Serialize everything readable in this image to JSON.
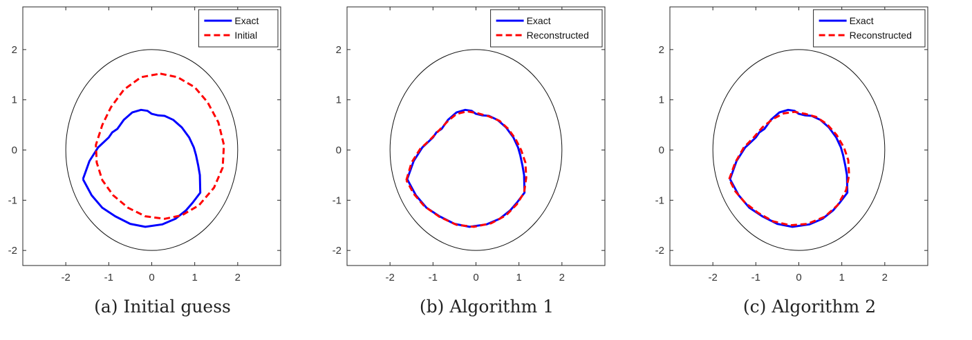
{
  "chart_data": [
    {
      "type": "line",
      "caption": "(a) Initial guess",
      "xlim": [
        -3,
        3
      ],
      "ylim": [
        -2.3,
        2.85
      ],
      "xticks": [
        -2,
        -1,
        0,
        1,
        2
      ],
      "yticks": [
        -2,
        -1,
        0,
        1,
        2
      ],
      "legend": "top-right",
      "series": [
        {
          "name": "Exact",
          "color": "#0000ff",
          "style": "solid",
          "points": [
            [
              -1.6,
              -0.58
            ],
            [
              -1.45,
              -0.22
            ],
            [
              -1.25,
              0.05
            ],
            [
              -1.0,
              0.25
            ],
            [
              -0.92,
              0.35
            ],
            [
              -0.8,
              0.42
            ],
            [
              -0.65,
              0.6
            ],
            [
              -0.45,
              0.75
            ],
            [
              -0.25,
              0.8
            ],
            [
              -0.1,
              0.78
            ],
            [
              0.0,
              0.72
            ],
            [
              0.15,
              0.69
            ],
            [
              0.3,
              0.68
            ],
            [
              0.5,
              0.6
            ],
            [
              0.7,
              0.45
            ],
            [
              0.87,
              0.25
            ],
            [
              0.98,
              0.05
            ],
            [
              1.03,
              -0.1
            ],
            [
              1.08,
              -0.3
            ],
            [
              1.12,
              -0.5
            ],
            [
              1.13,
              -0.85
            ],
            [
              0.95,
              -1.05
            ],
            [
              0.8,
              -1.2
            ],
            [
              0.55,
              -1.37
            ],
            [
              0.25,
              -1.48
            ],
            [
              -0.15,
              -1.53
            ],
            [
              -0.5,
              -1.47
            ],
            [
              -0.85,
              -1.32
            ],
            [
              -1.15,
              -1.15
            ],
            [
              -1.4,
              -0.9
            ],
            [
              -1.6,
              -0.58
            ]
          ]
        },
        {
          "name": "Initial",
          "color": "#ff0000",
          "style": "dashed",
          "points": [
            [
              0.2,
              1.52
            ],
            [
              0.6,
              1.45
            ],
            [
              1.0,
              1.25
            ],
            [
              1.3,
              0.95
            ],
            [
              1.55,
              0.55
            ],
            [
              1.68,
              0.1
            ],
            [
              1.65,
              -0.35
            ],
            [
              1.45,
              -0.75
            ],
            [
              1.1,
              -1.1
            ],
            [
              0.7,
              -1.3
            ],
            [
              0.3,
              -1.37
            ],
            [
              -0.15,
              -1.32
            ],
            [
              -0.55,
              -1.15
            ],
            [
              -0.9,
              -0.9
            ],
            [
              -1.15,
              -0.6
            ],
            [
              -1.28,
              -0.25
            ],
            [
              -1.3,
              0.1
            ],
            [
              -1.15,
              0.5
            ],
            [
              -0.95,
              0.85
            ],
            [
              -0.65,
              1.2
            ],
            [
              -0.25,
              1.45
            ],
            [
              0.2,
              1.52
            ]
          ]
        }
      ]
    },
    {
      "type": "line",
      "caption": "(b) Algorithm 1",
      "xlim": [
        -3,
        3
      ],
      "ylim": [
        -2.3,
        2.85
      ],
      "xticks": [
        -2,
        -1,
        0,
        1,
        2
      ],
      "yticks": [
        -2,
        -1,
        0,
        1,
        2
      ],
      "legend": "top-right",
      "series": [
        {
          "name": "Exact",
          "color": "#0000ff",
          "style": "solid",
          "points": [
            [
              -1.6,
              -0.58
            ],
            [
              -1.45,
              -0.22
            ],
            [
              -1.25,
              0.05
            ],
            [
              -1.0,
              0.25
            ],
            [
              -0.92,
              0.35
            ],
            [
              -0.8,
              0.42
            ],
            [
              -0.65,
              0.6
            ],
            [
              -0.45,
              0.75
            ],
            [
              -0.25,
              0.8
            ],
            [
              -0.1,
              0.78
            ],
            [
              0.0,
              0.72
            ],
            [
              0.15,
              0.69
            ],
            [
              0.3,
              0.68
            ],
            [
              0.5,
              0.6
            ],
            [
              0.7,
              0.45
            ],
            [
              0.87,
              0.25
            ],
            [
              0.98,
              0.05
            ],
            [
              1.03,
              -0.1
            ],
            [
              1.08,
              -0.3
            ],
            [
              1.12,
              -0.5
            ],
            [
              1.13,
              -0.85
            ],
            [
              0.95,
              -1.05
            ],
            [
              0.8,
              -1.2
            ],
            [
              0.55,
              -1.37
            ],
            [
              0.25,
              -1.48
            ],
            [
              -0.15,
              -1.53
            ],
            [
              -0.5,
              -1.47
            ],
            [
              -0.85,
              -1.32
            ],
            [
              -1.15,
              -1.15
            ],
            [
              -1.4,
              -0.9
            ],
            [
              -1.6,
              -0.58
            ]
          ]
        },
        {
          "name": "Reconstructed",
          "color": "#ff0000",
          "style": "dashed",
          "points": [
            [
              -1.62,
              -0.6
            ],
            [
              -1.5,
              -0.25
            ],
            [
              -1.3,
              0.02
            ],
            [
              -1.05,
              0.22
            ],
            [
              -0.85,
              0.4
            ],
            [
              -0.65,
              0.58
            ],
            [
              -0.45,
              0.72
            ],
            [
              -0.2,
              0.77
            ],
            [
              0.05,
              0.73
            ],
            [
              0.3,
              0.67
            ],
            [
              0.55,
              0.58
            ],
            [
              0.75,
              0.42
            ],
            [
              0.92,
              0.22
            ],
            [
              1.05,
              0.0
            ],
            [
              1.15,
              -0.25
            ],
            [
              1.17,
              -0.55
            ],
            [
              1.12,
              -0.85
            ],
            [
              0.95,
              -1.08
            ],
            [
              0.7,
              -1.3
            ],
            [
              0.35,
              -1.46
            ],
            [
              -0.05,
              -1.53
            ],
            [
              -0.45,
              -1.49
            ],
            [
              -0.85,
              -1.33
            ],
            [
              -1.2,
              -1.12
            ],
            [
              -1.45,
              -0.87
            ],
            [
              -1.62,
              -0.6
            ]
          ]
        }
      ]
    },
    {
      "type": "line",
      "caption": "(c) Algorithm 2",
      "xlim": [
        -3,
        3
      ],
      "ylim": [
        -2.3,
        2.85
      ],
      "xticks": [
        -2,
        -1,
        0,
        1,
        2
      ],
      "yticks": [
        -2,
        -1,
        0,
        1,
        2
      ],
      "legend": "top-right",
      "series": [
        {
          "name": "Exact",
          "color": "#0000ff",
          "style": "solid",
          "points": [
            [
              -1.6,
              -0.58
            ],
            [
              -1.45,
              -0.22
            ],
            [
              -1.25,
              0.05
            ],
            [
              -1.0,
              0.25
            ],
            [
              -0.92,
              0.35
            ],
            [
              -0.8,
              0.42
            ],
            [
              -0.65,
              0.6
            ],
            [
              -0.45,
              0.75
            ],
            [
              -0.25,
              0.8
            ],
            [
              -0.1,
              0.78
            ],
            [
              0.0,
              0.72
            ],
            [
              0.15,
              0.69
            ],
            [
              0.3,
              0.68
            ],
            [
              0.5,
              0.6
            ],
            [
              0.7,
              0.45
            ],
            [
              0.87,
              0.25
            ],
            [
              0.98,
              0.05
            ],
            [
              1.03,
              -0.1
            ],
            [
              1.08,
              -0.3
            ],
            [
              1.12,
              -0.5
            ],
            [
              1.13,
              -0.85
            ],
            [
              0.95,
              -1.05
            ],
            [
              0.8,
              -1.2
            ],
            [
              0.55,
              -1.37
            ],
            [
              0.25,
              -1.48
            ],
            [
              -0.15,
              -1.53
            ],
            [
              -0.5,
              -1.47
            ],
            [
              -0.85,
              -1.32
            ],
            [
              -1.15,
              -1.15
            ],
            [
              -1.4,
              -0.9
            ],
            [
              -1.6,
              -0.58
            ]
          ]
        },
        {
          "name": "Reconstructed",
          "color": "#ff0000",
          "style": "dashed",
          "points": [
            [
              -1.62,
              -0.58
            ],
            [
              -1.48,
              -0.25
            ],
            [
              -1.28,
              0.05
            ],
            [
              -1.05,
              0.25
            ],
            [
              -0.85,
              0.45
            ],
            [
              -0.6,
              0.62
            ],
            [
              -0.35,
              0.73
            ],
            [
              -0.1,
              0.76
            ],
            [
              0.15,
              0.72
            ],
            [
              0.4,
              0.66
            ],
            [
              0.65,
              0.52
            ],
            [
              0.88,
              0.3
            ],
            [
              1.05,
              0.05
            ],
            [
              1.15,
              -0.2
            ],
            [
              1.17,
              -0.5
            ],
            [
              1.1,
              -0.8
            ],
            [
              0.9,
              -1.1
            ],
            [
              0.6,
              -1.33
            ],
            [
              0.2,
              -1.47
            ],
            [
              -0.2,
              -1.5
            ],
            [
              -0.6,
              -1.42
            ],
            [
              -0.95,
              -1.25
            ],
            [
              -1.25,
              -1.05
            ],
            [
              -1.48,
              -0.82
            ],
            [
              -1.62,
              -0.58
            ]
          ]
        }
      ]
    }
  ]
}
